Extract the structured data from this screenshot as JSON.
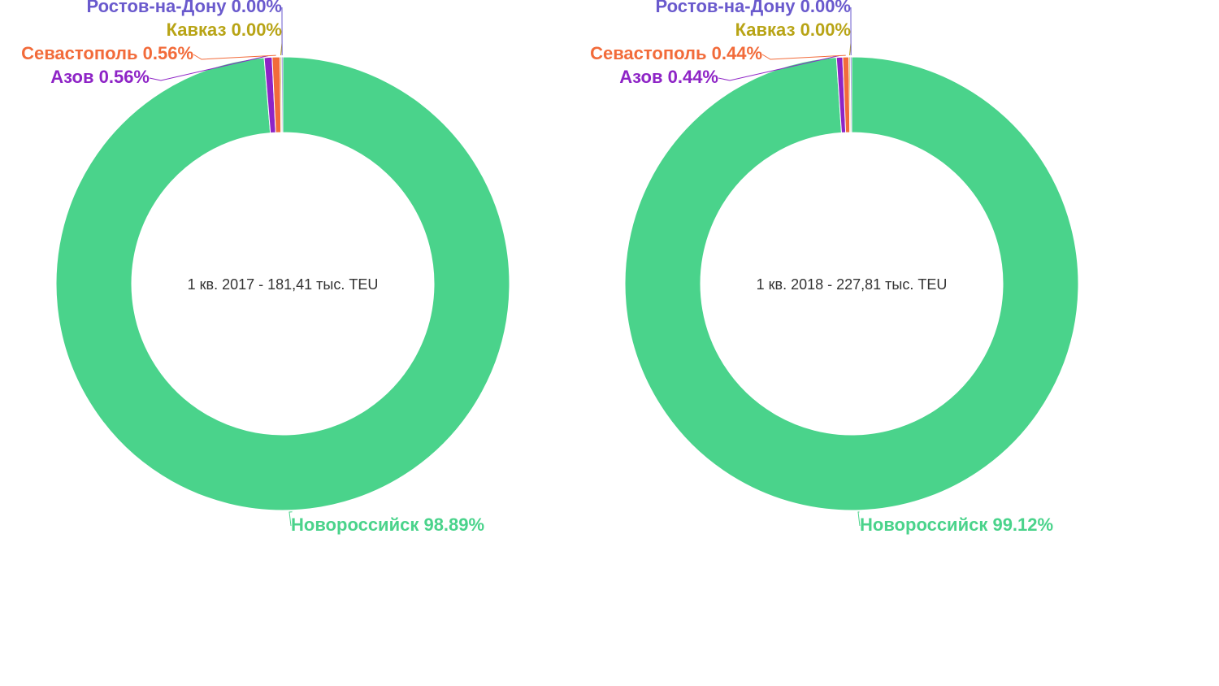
{
  "chart_data": [
    {
      "type": "pie",
      "donut": true,
      "center_label": "1 кв. 2017 - 181,41 тыс. TEU",
      "slices": [
        {
          "name": "Новороссийск",
          "value": 98.89,
          "label": "Новороссийск 98.89%",
          "color": "#4ad38b"
        },
        {
          "name": "Азов",
          "value": 0.56,
          "label": "Азов 0.56%",
          "color": "#8e24c6"
        },
        {
          "name": "Севастополь",
          "value": 0.56,
          "label": "Севастополь 0.56%",
          "color": "#f26b3a"
        },
        {
          "name": "Кавказ",
          "value": 0.0,
          "label": "Кавказ 0.00%",
          "color": "#b8a416"
        },
        {
          "name": "Ростов-на-Дону",
          "value": 0.0,
          "label": "Ростов-на-Дону 0.00%",
          "color": "#6a5acd"
        }
      ]
    },
    {
      "type": "pie",
      "donut": true,
      "center_label": "1 кв. 2018 - 227,81 тыс. TEU",
      "slices": [
        {
          "name": "Новороссийск",
          "value": 99.12,
          "label": "Новороссийск 99.12%",
          "color": "#4ad38b"
        },
        {
          "name": "Азов",
          "value": 0.44,
          "label": "Азов 0.44%",
          "color": "#8e24c6"
        },
        {
          "name": "Севастополь",
          "value": 0.44,
          "label": "Севастополь 0.44%",
          "color": "#f26b3a"
        },
        {
          "name": "Кавказ",
          "value": 0.0,
          "label": "Кавказ 0.00%",
          "color": "#b8a416"
        },
        {
          "name": "Ростов-на-Дону",
          "value": 0.0,
          "label": "Ростов-на-Дону 0.00%",
          "color": "#6a5acd"
        }
      ]
    }
  ]
}
